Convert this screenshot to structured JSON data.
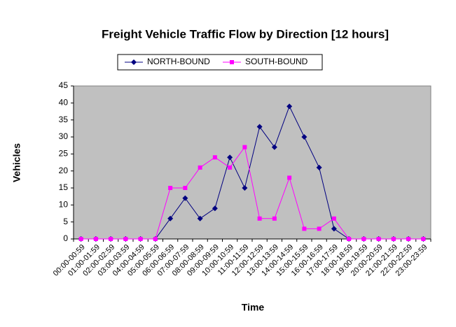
{
  "chart_data": {
    "type": "line",
    "title": "Freight Vehicle Traffic Flow by Direction [12 hours]",
    "x_label": "Time",
    "y_label": "Vehicles",
    "categories": [
      "00:00-00:59",
      "01:00-01:59",
      "02:00-02:59",
      "03:00-03:59",
      "04:00-04:59",
      "05:00-05:59",
      "06:00-06:59",
      "07:00-07:59",
      "08:00-08:59",
      "09:00-09:59",
      "10:00-10:59",
      "11:00-11:59",
      "12:00-12:59",
      "13:00-13:59",
      "14:00-14:59",
      "15:00-15:59",
      "16:00-16:59",
      "17:00-17:59",
      "18:00-18:59",
      "19:00-19:59",
      "20:00-20:59",
      "21:00-21:59",
      "22:00-22:59",
      "23:00-23:59"
    ],
    "series": [
      {
        "name": "NORTH-BOUND",
        "color": "#000080",
        "marker": "diamond",
        "values": [
          0,
          0,
          0,
          0,
          0,
          0,
          6,
          12,
          6,
          9,
          24,
          15,
          33,
          27,
          39,
          30,
          21,
          3,
          0,
          0,
          0,
          0,
          0,
          0
        ]
      },
      {
        "name": "SOUTH-BOUND",
        "color": "#ff00ff",
        "marker": "square",
        "values": [
          0,
          0,
          0,
          0,
          0,
          0,
          15,
          15,
          21,
          24,
          21,
          27,
          6,
          6,
          18,
          3,
          3,
          6,
          0,
          0,
          0,
          0,
          0,
          0
        ]
      }
    ],
    "ylim": [
      0,
      45
    ],
    "yticks": [
      0,
      5,
      10,
      15,
      20,
      25,
      30,
      35,
      40,
      45
    ],
    "grid": false,
    "plot_background": "#c0c0c0",
    "legend": "top"
  }
}
